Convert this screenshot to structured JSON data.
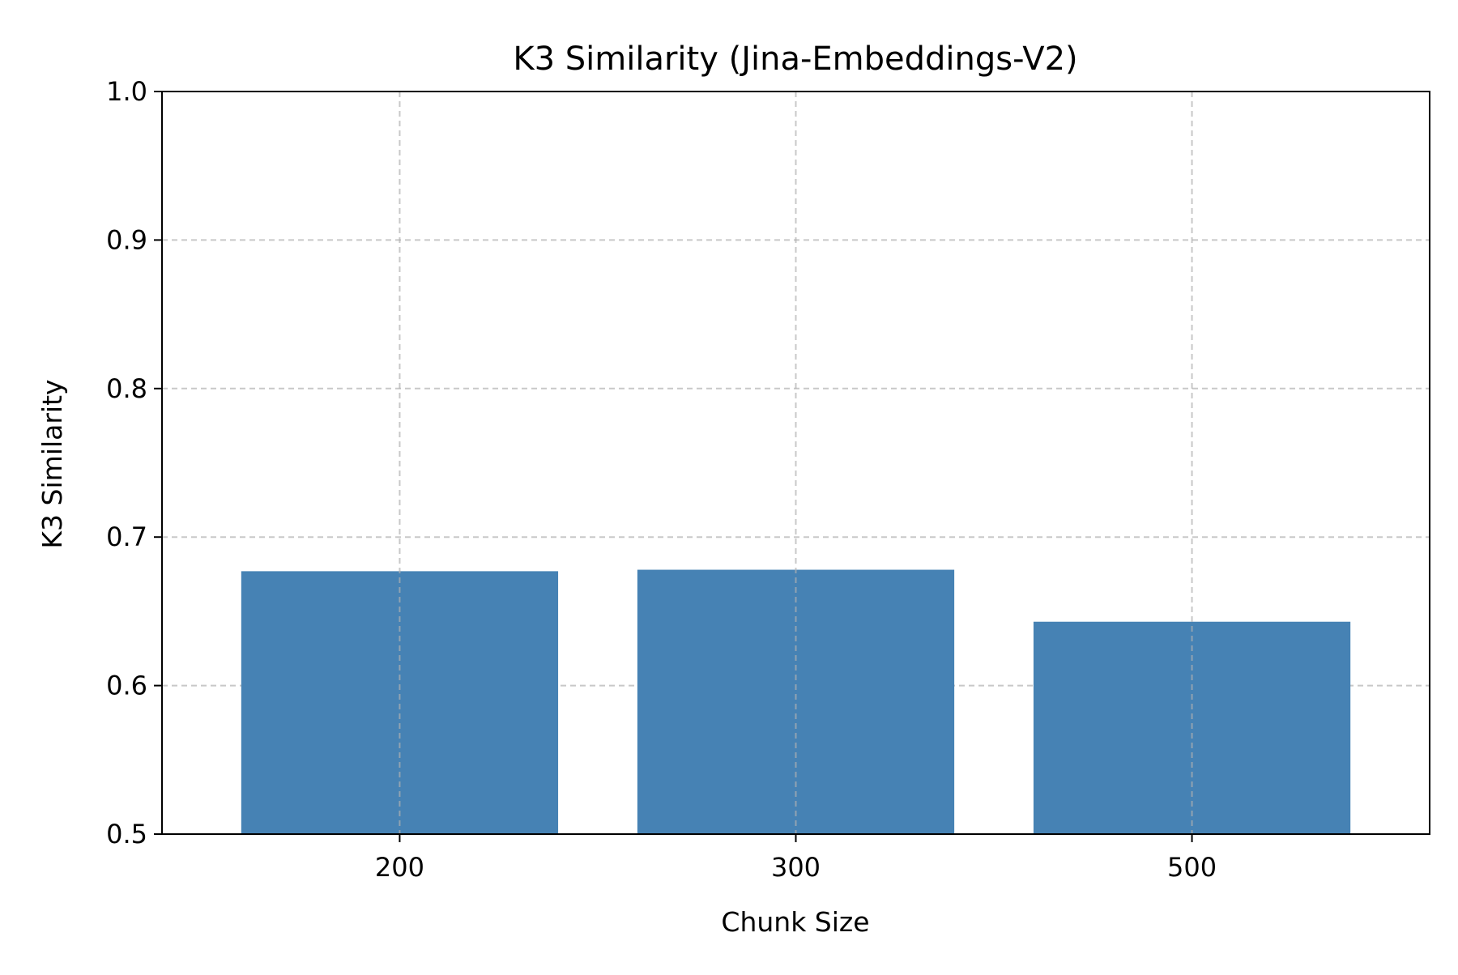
{
  "chart_data": {
    "type": "bar",
    "title": "K3 Similarity (Jina-Embeddings-V2)",
    "xlabel": "Chunk Size",
    "ylabel": "K3 Similarity",
    "categories": [
      "200",
      "300",
      "500"
    ],
    "values": [
      0.677,
      0.678,
      0.643
    ],
    "ylim": [
      0.5,
      1.0
    ],
    "yticks": [
      "0.5",
      "0.6",
      "0.7",
      "0.8",
      "0.9",
      "1.0"
    ],
    "grid": true,
    "grid_style": "dashed",
    "legend": "none",
    "bar_color": "#4682b4"
  }
}
